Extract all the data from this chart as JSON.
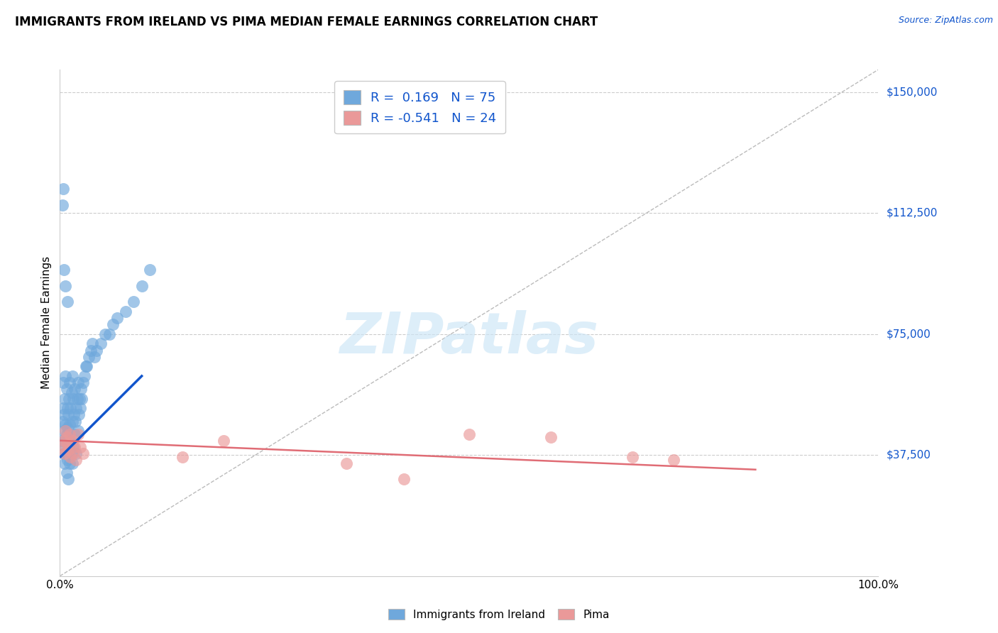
{
  "title": "IMMIGRANTS FROM IRELAND VS PIMA MEDIAN FEMALE EARNINGS CORRELATION CHART",
  "source": "Source: ZipAtlas.com",
  "ylabel": "Median Female Earnings",
  "xlim": [
    0.0,
    1.0
  ],
  "ylim": [
    0,
    157000
  ],
  "blue_color": "#6fa8dc",
  "pink_color": "#ea9999",
  "blue_line_color": "#1155cc",
  "pink_line_color": "#e06c75",
  "watermark_text": "ZIPatlas",
  "blue_scatter_x": [
    0.002,
    0.003,
    0.004,
    0.004,
    0.005,
    0.005,
    0.005,
    0.006,
    0.006,
    0.006,
    0.007,
    0.007,
    0.007,
    0.008,
    0.008,
    0.008,
    0.008,
    0.009,
    0.009,
    0.009,
    0.01,
    0.01,
    0.01,
    0.01,
    0.011,
    0.011,
    0.012,
    0.012,
    0.012,
    0.013,
    0.013,
    0.014,
    0.014,
    0.015,
    0.015,
    0.015,
    0.016,
    0.016,
    0.017,
    0.018,
    0.018,
    0.019,
    0.02,
    0.02,
    0.021,
    0.022,
    0.022,
    0.023,
    0.024,
    0.025,
    0.026,
    0.027,
    0.028,
    0.03,
    0.032,
    0.033,
    0.035,
    0.038,
    0.04,
    0.042,
    0.045,
    0.05,
    0.055,
    0.06,
    0.065,
    0.07,
    0.08,
    0.09,
    0.1,
    0.11,
    0.003,
    0.004,
    0.005,
    0.007,
    0.009
  ],
  "blue_scatter_y": [
    42000,
    48000,
    52000,
    60000,
    45000,
    50000,
    38000,
    55000,
    42000,
    35000,
    47000,
    40000,
    62000,
    58000,
    44000,
    38000,
    32000,
    52000,
    46000,
    36000,
    50000,
    43000,
    38000,
    30000,
    55000,
    40000,
    60000,
    47000,
    35000,
    52000,
    42000,
    57000,
    38000,
    62000,
    48000,
    35000,
    55000,
    40000,
    50000,
    58000,
    44000,
    48000,
    52000,
    38000,
    55000,
    60000,
    45000,
    50000,
    55000,
    52000,
    58000,
    55000,
    60000,
    62000,
    65000,
    65000,
    68000,
    70000,
    72000,
    68000,
    70000,
    72000,
    75000,
    75000,
    78000,
    80000,
    82000,
    85000,
    90000,
    95000,
    115000,
    120000,
    95000,
    90000,
    85000
  ],
  "pink_scatter_x": [
    0.003,
    0.005,
    0.006,
    0.007,
    0.008,
    0.009,
    0.01,
    0.012,
    0.013,
    0.015,
    0.016,
    0.018,
    0.02,
    0.022,
    0.025,
    0.028,
    0.15,
    0.2,
    0.35,
    0.42,
    0.5,
    0.6,
    0.7,
    0.75
  ],
  "pink_scatter_y": [
    40000,
    42000,
    38000,
    45000,
    43000,
    41000,
    39000,
    44000,
    37000,
    42000,
    38000,
    40000,
    36000,
    44000,
    40000,
    38000,
    37000,
    42000,
    35000,
    30000,
    44000,
    43000,
    37000,
    36000
  ],
  "blue_line_x": [
    0.001,
    0.1
  ],
  "blue_line_y": [
    37000,
    62000
  ],
  "pink_line_x": [
    0.001,
    0.85
  ],
  "pink_line_y": [
    42000,
    33000
  ],
  "diag_line_x": [
    0.0,
    1.0
  ],
  "diag_line_y": [
    0,
    157000
  ],
  "yticks": [
    0,
    37500,
    75000,
    112500,
    150000
  ],
  "ytick_labels": [
    "",
    "$37,500",
    "$75,000",
    "$112,500",
    "$150,000"
  ],
  "legend1_labels": [
    "R =  0.169   N = 75",
    "R = -0.541   N = 24"
  ],
  "bottom_legend_labels": [
    "Immigrants from Ireland",
    "Pima"
  ]
}
